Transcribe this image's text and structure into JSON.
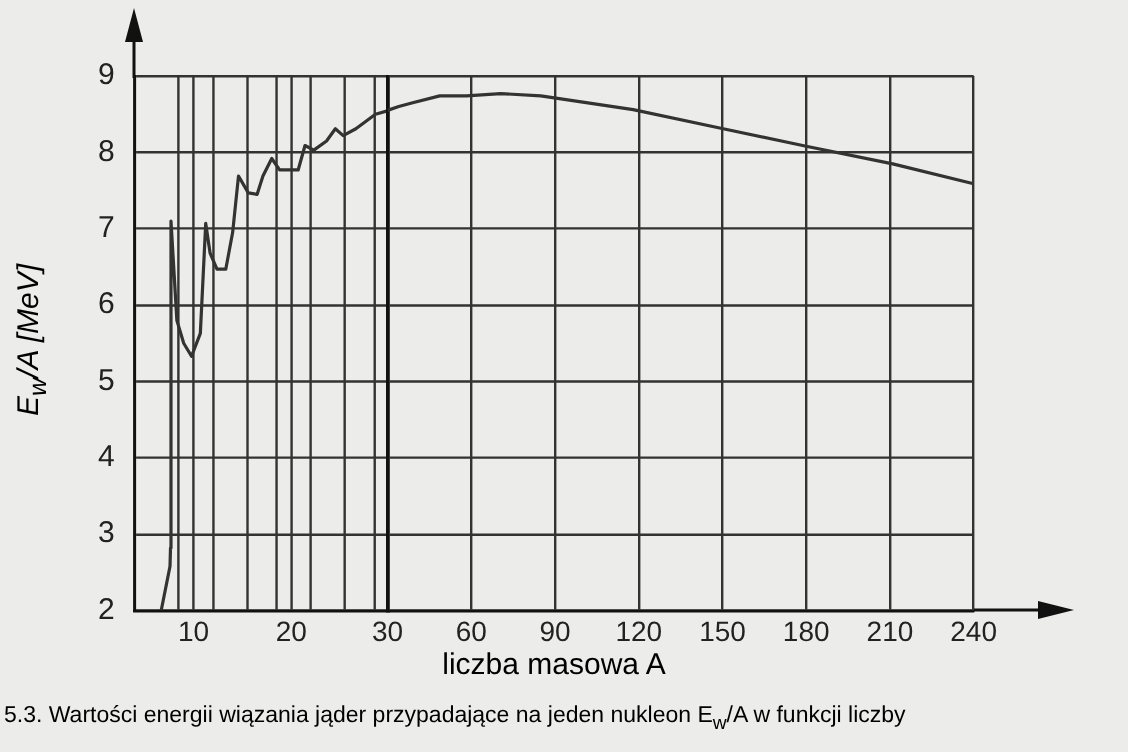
{
  "chart_data": [
    {
      "type": "line",
      "ylabel": "E$_{w}$/A [MeV]",
      "x": [
        6.7,
        7.6,
        7.65,
        7.7,
        8.3,
        9.0,
        9.8,
        10.7,
        11.25,
        11.7,
        12.4,
        13.3,
        14.0,
        14.6,
        15.6,
        16.5,
        17.1,
        18.0,
        18.8,
        20.7,
        21.4,
        22.3,
        23.6,
        24.5,
        25.3,
        26.6,
        28.6,
        30
      ],
      "series": [
        {
          "color": "#333333",
          "values": [
            2.0,
            2.58,
            2.82,
            7.1,
            5.8,
            5.5,
            5.33,
            5.63,
            7.07,
            6.68,
            6.47,
            6.47,
            6.95,
            7.69,
            7.47,
            7.45,
            7.69,
            7.92,
            7.77,
            7.77,
            8.09,
            8.03,
            8.15,
            8.31,
            8.22,
            8.31,
            8.5,
            8.55
          ]
        }
      ],
      "xlim": [
        4,
        30
      ],
      "xticks": [
        {
          "value": 8.5,
          "label": null
        },
        10,
        {
          "value": 12,
          "label": null
        },
        {
          "value": 15.5,
          "label": null
        },
        {
          "value": 18.5,
          "label": null
        },
        20,
        {
          "value": 22,
          "label": null
        },
        {
          "value": 25.5,
          "label": null
        },
        {
          "value": 28.5,
          "label": null
        },
        {
          "value": 30,
          "label": null
        }
      ],
      "ylim": [
        2,
        9
      ],
      "yticks": [
        2,
        3,
        4,
        5,
        6,
        7,
        8,
        9
      ],
      "grid": true,
      "legend": false,
      "marker": "none",
      "line_style": "solid"
    },
    {
      "type": "line",
      "xlabel": "liczba masowa A",
      "annotations": [
        "5.3. Wartości energii wiązania jąder przypadające na jeden nukleon E$_{w}$/A w funkcji liczby"
      ],
      "x": [
        30,
        34,
        39,
        48.7,
        58.3,
        70.5,
        84.9,
        118,
        149,
        180,
        211,
        240
      ],
      "series": [
        {
          "color": "#333333",
          "values": [
            8.55,
            8.6,
            8.65,
            8.74,
            8.74,
            8.77,
            8.74,
            8.56,
            8.32,
            8.08,
            7.85,
            7.59
          ]
        }
      ],
      "xlim": [
        30,
        240
      ],
      "xticks": [
        30,
        60,
        90,
        120,
        150,
        180,
        210,
        240
      ],
      "ylim": [
        2,
        9
      ],
      "yticks": [
        2,
        3,
        4,
        5,
        6,
        7,
        8,
        9
      ],
      "tick_labels": "x",
      "grid": true,
      "legend": false,
      "marker": "none",
      "line_style": "solid"
    }
  ]
}
